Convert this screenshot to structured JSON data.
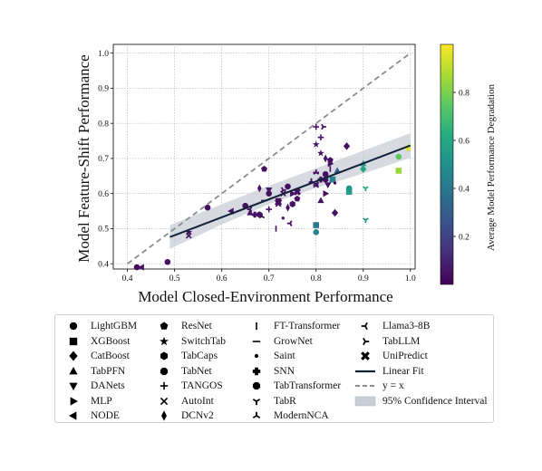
{
  "chart_data": {
    "type": "scatter",
    "xlabel": "Model Closed-Environment Performance",
    "ylabel": "Model Feature-Shift Performance",
    "xlim": [
      0.37,
      1.01
    ],
    "ylim": [
      0.385,
      1.025
    ],
    "xticks": [
      "0.4",
      "0.5",
      "0.6",
      "0.7",
      "0.8",
      "0.9",
      "1.0"
    ],
    "yticks": [
      "0.4",
      "0.5",
      "0.6",
      "0.7",
      "0.8",
      "0.9",
      "1.0"
    ],
    "grid": true,
    "colorbar": {
      "label": "Average  Model Performance Degradation",
      "range": [
        0.0,
        1.0
      ],
      "ticks": [
        "0.2",
        "0.4",
        "0.6",
        "0.8"
      ],
      "colormap": "viridis"
    },
    "reference_line": {
      "name": "y = x",
      "from": [
        0.4,
        0.4
      ],
      "to": [
        1.0,
        1.0
      ],
      "color": "#8c8c8c"
    },
    "linear_fit": {
      "name": "Linear Fit",
      "from": [
        0.49,
        0.476
      ],
      "to": [
        1.0,
        0.737
      ],
      "color": "#10213a"
    },
    "confidence_band": {
      "name": "95% Confidence Interval",
      "upper": [
        [
          0.49,
          0.51
        ],
        [
          0.6,
          0.57
        ],
        [
          0.7,
          0.622
        ],
        [
          0.8,
          0.672
        ],
        [
          0.9,
          0.722
        ],
        [
          1.0,
          0.772
        ]
      ],
      "lower": [
        [
          0.49,
          0.442
        ],
        [
          0.6,
          0.512
        ],
        [
          0.7,
          0.57
        ],
        [
          0.8,
          0.616
        ],
        [
          0.9,
          0.657
        ],
        [
          1.0,
          0.702
        ]
      ]
    },
    "series": [
      {
        "name": "LightGBM",
        "marker": "circle",
        "points": [
          [
            0.42,
            0.39
          ],
          [
            0.485,
            0.405
          ],
          [
            0.57,
            0.56
          ],
          [
            0.8,
            0.49
          ],
          [
            0.87,
            0.615
          ],
          [
            0.975,
            0.705
          ]
        ]
      },
      {
        "name": "XGBoost",
        "marker": "square",
        "points": [
          [
            0.8,
            0.51
          ],
          [
            0.87,
            0.605
          ],
          [
            0.975,
            0.665
          ],
          [
            0.835,
            0.64
          ]
        ]
      },
      {
        "name": "CatBoost",
        "marker": "diamond",
        "points": [
          [
            0.865,
            0.735
          ],
          [
            0.84,
            0.545
          ],
          [
            0.9,
            0.67
          ],
          [
            0.995,
            0.73
          ]
        ]
      },
      {
        "name": "TabPFN",
        "marker": "triangle-up",
        "points": [
          [
            0.66,
            0.545
          ],
          [
            0.81,
            0.58
          ],
          [
            0.845,
            0.665
          ],
          [
            0.9,
            0.685
          ]
        ]
      },
      {
        "name": "DANets",
        "marker": "triangle-down",
        "points": [
          [
            0.72,
            0.58
          ],
          [
            0.825,
            0.625
          ],
          [
            0.7,
            0.61
          ]
        ]
      },
      {
        "name": "MLP",
        "marker": "triangle-right",
        "points": [
          [
            0.75,
            0.6
          ],
          [
            0.82,
            0.6
          ],
          [
            0.83,
            0.685
          ]
        ]
      },
      {
        "name": "NODE",
        "marker": "triangle-left",
        "points": [
          [
            0.43,
            0.39
          ],
          [
            0.62,
            0.55
          ],
          [
            0.8,
            0.625
          ]
        ]
      },
      {
        "name": "ResNet",
        "marker": "pentagon",
        "points": [
          [
            0.69,
            0.67
          ],
          [
            0.76,
            0.585
          ],
          [
            0.83,
            0.695
          ]
        ]
      },
      {
        "name": "SwitchTab",
        "marker": "star",
        "points": [
          [
            0.53,
            0.49
          ],
          [
            0.8,
            0.74
          ],
          [
            0.81,
            0.715
          ]
        ]
      },
      {
        "name": "TabCaps",
        "marker": "hexagon",
        "points": [
          [
            0.68,
            0.54
          ],
          [
            0.75,
            0.57
          ],
          [
            0.82,
            0.64
          ]
        ]
      },
      {
        "name": "TabNet",
        "marker": "octagon",
        "points": [
          [
            0.7,
            0.6
          ],
          [
            0.82,
            0.655
          ]
        ]
      },
      {
        "name": "TANGOS",
        "marker": "plus",
        "points": [
          [
            0.7,
            0.555
          ],
          [
            0.8,
            0.79
          ],
          [
            0.81,
            0.76
          ]
        ]
      },
      {
        "name": "AutoInt",
        "marker": "x",
        "points": [
          [
            0.53,
            0.48
          ],
          [
            0.73,
            0.6
          ],
          [
            0.8,
            0.625
          ],
          [
            0.72,
            0.57
          ]
        ]
      },
      {
        "name": "DCNv2",
        "marker": "thin-diamond",
        "points": [
          [
            0.68,
            0.615
          ],
          [
            0.74,
            0.56
          ],
          [
            0.82,
            0.7
          ]
        ]
      },
      {
        "name": "FT-Transformer",
        "marker": "vline",
        "points": [
          [
            0.715,
            0.5
          ],
          [
            0.83,
            0.67
          ]
        ]
      },
      {
        "name": "GrowNet",
        "marker": "hline",
        "points": [
          [
            0.69,
            0.58
          ],
          [
            0.8,
            0.66
          ]
        ]
      },
      {
        "name": "Saint",
        "marker": "point",
        "points": [
          [
            0.73,
            0.53
          ],
          [
            0.84,
            0.63
          ]
        ]
      },
      {
        "name": "SNN",
        "marker": "plus-filled",
        "points": [
          [
            0.67,
            0.54
          ],
          [
            0.81,
            0.64
          ]
        ]
      },
      {
        "name": "TabTransformer",
        "marker": "octagon",
        "points": [
          [
            0.65,
            0.565
          ],
          [
            0.74,
            0.62
          ]
        ]
      },
      {
        "name": "TabR",
        "marker": "tri-down",
        "points": [
          [
            0.905,
            0.615
          ],
          [
            0.905,
            0.525
          ]
        ]
      },
      {
        "name": "ModernNCA",
        "marker": "tri-up",
        "points": [
          [
            0.685,
            0.535
          ],
          [
            0.79,
            0.635
          ],
          [
            0.8,
            0.66
          ]
        ]
      },
      {
        "name": "Llama3-8B",
        "marker": "tri-left",
        "points": [
          [
            0.745,
            0.515
          ],
          [
            0.66,
            0.555
          ]
        ]
      },
      {
        "name": "TabLLM",
        "marker": "tri-right",
        "points": [
          [
            0.815,
            0.79
          ],
          [
            0.73,
            0.61
          ]
        ]
      },
      {
        "name": "UniPredict",
        "marker": "x-filled",
        "points": [
          [
            0.72,
            0.575
          ],
          [
            0.76,
            0.605
          ]
        ]
      }
    ],
    "color_values": {
      "default": 0.05,
      "overrides": [
        [
          0.42,
          0.39,
          0.02
        ],
        [
          0.485,
          0.405,
          0.05
        ],
        [
          0.835,
          0.64,
          0.45
        ],
        [
          0.87,
          0.615,
          0.52
        ],
        [
          0.87,
          0.605,
          0.55
        ],
        [
          0.9,
          0.67,
          0.6
        ],
        [
          0.975,
          0.705,
          0.75
        ],
        [
          0.975,
          0.665,
          0.85
        ],
        [
          0.995,
          0.73,
          0.95
        ],
        [
          0.905,
          0.615,
          0.6
        ],
        [
          0.905,
          0.525,
          0.5
        ],
        [
          0.845,
          0.665,
          0.3
        ],
        [
          0.9,
          0.685,
          0.55
        ],
        [
          0.8,
          0.51,
          0.4
        ],
        [
          0.8,
          0.49,
          0.45
        ]
      ]
    }
  },
  "legend": {
    "columns": [
      [
        {
          "label": "LightGBM",
          "marker": "circle"
        },
        {
          "label": "XGBoost",
          "marker": "square"
        },
        {
          "label": "CatBoost",
          "marker": "diamond"
        },
        {
          "label": "TabPFN",
          "marker": "triangle-up"
        },
        {
          "label": "DANets",
          "marker": "triangle-down"
        },
        {
          "label": "MLP",
          "marker": "triangle-right"
        },
        {
          "label": "NODE",
          "marker": "triangle-left"
        }
      ],
      [
        {
          "label": "ResNet",
          "marker": "pentagon"
        },
        {
          "label": "SwitchTab",
          "marker": "star"
        },
        {
          "label": "TabCaps",
          "marker": "hexagon"
        },
        {
          "label": "TabNet",
          "marker": "octagon"
        },
        {
          "label": "TANGOS",
          "marker": "plus"
        },
        {
          "label": "AutoInt",
          "marker": "x"
        },
        {
          "label": "DCNv2",
          "marker": "thin-diamond"
        }
      ],
      [
        {
          "label": "FT-Transformer",
          "marker": "vline"
        },
        {
          "label": "GrowNet",
          "marker": "hline"
        },
        {
          "label": "Saint",
          "marker": "point"
        },
        {
          "label": "SNN",
          "marker": "plus-filled"
        },
        {
          "label": "TabTransformer",
          "marker": "octagon"
        },
        {
          "label": "TabR",
          "marker": "tri-down"
        },
        {
          "label": "ModernNCA",
          "marker": "tri-up"
        }
      ],
      [
        {
          "label": "Llama3-8B",
          "marker": "tri-left"
        },
        {
          "label": "TabLLM",
          "marker": "tri-right"
        },
        {
          "label": "UniPredict",
          "marker": "x-filled"
        },
        {
          "label": "Linear Fit",
          "marker": "fit-line"
        },
        {
          "label": "y = x",
          "marker": "dash-line"
        },
        {
          "label": "95% Confidence Interval",
          "marker": "band"
        }
      ]
    ]
  }
}
